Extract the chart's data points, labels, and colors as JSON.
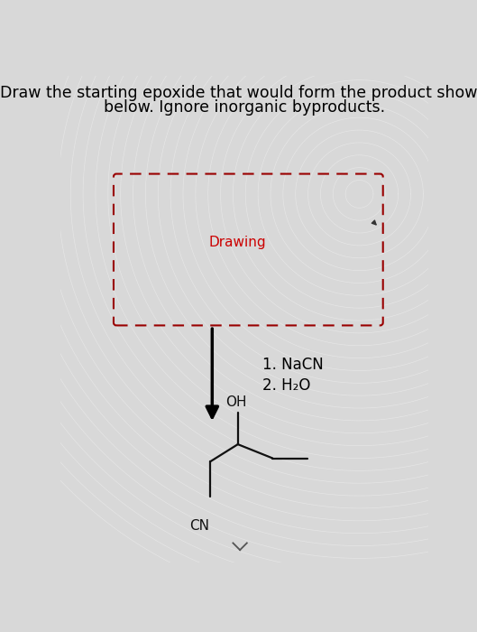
{
  "title_line1": "Draw the starting epoxide that would form the product shown",
  "title_line2": "below. Ignore inorganic byproducts.",
  "drawing_label": "Drawing",
  "bg_color": "#d8d8d8",
  "box_facecolor": "white",
  "box_edgecolor": "#990000",
  "title_fontsize": 12.5,
  "drawing_fontsize": 11,
  "reagent_fontsize": 12,
  "molecule_color": "#111111",
  "molecule_lw": 1.6,
  "reagent1": "1. NaCN",
  "reagent2": "2. H₂O"
}
